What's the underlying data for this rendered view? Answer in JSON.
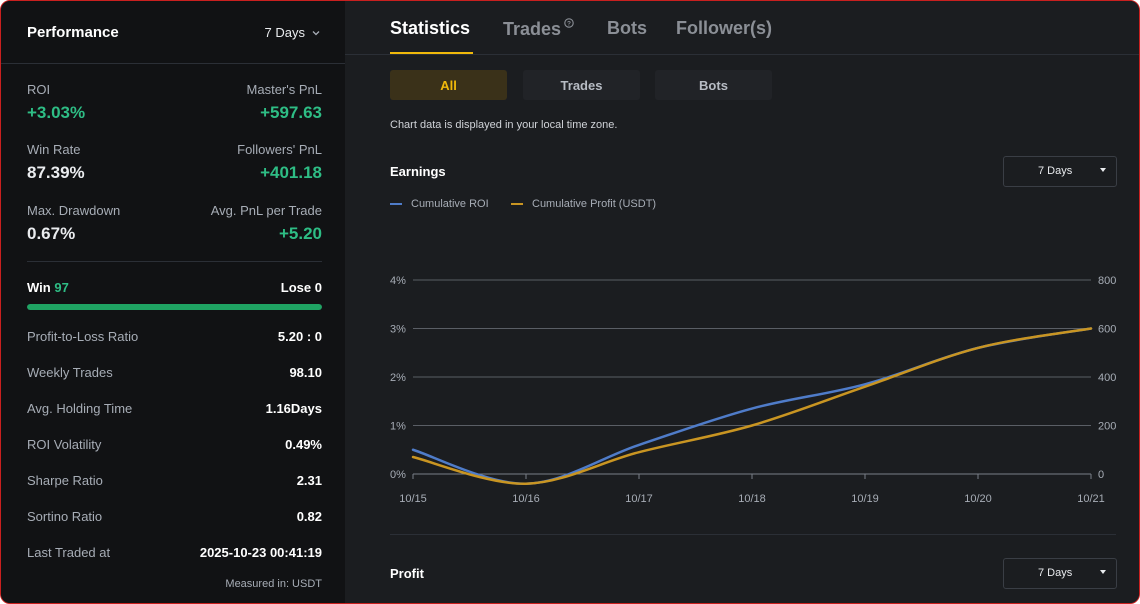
{
  "performance": {
    "title": "Performance",
    "period": "7 Days",
    "metrics": {
      "roi_label": "ROI",
      "roi_value": "+3.03%",
      "master_pnl_label": "Master's PnL",
      "master_pnl_value": "+597.63",
      "win_rate_label": "Win Rate",
      "win_rate_value": "87.39%",
      "followers_pnl_label": "Followers' PnL",
      "followers_pnl_value": "+401.18",
      "max_drawdown_label": "Max. Drawdown",
      "max_drawdown_value": "0.67%",
      "avg_pnl_label": "Avg. PnL per Trade",
      "avg_pnl_value": "+5.20"
    },
    "win_label": "Win",
    "win_count": "97",
    "lose_label": "Lose",
    "lose_count": "0",
    "win_fraction": 1.0,
    "stats": [
      {
        "label": "Profit-to-Loss Ratio",
        "value": "5.20 : 0"
      },
      {
        "label": "Weekly Trades",
        "value": "98.10"
      },
      {
        "label": "Avg. Holding Time",
        "value": "1.16Days"
      },
      {
        "label": "ROI Volatility",
        "value": "0.49%"
      },
      {
        "label": "Sharpe Ratio",
        "value": "2.31"
      },
      {
        "label": "Sortino Ratio",
        "value": "0.82"
      },
      {
        "label": "Last Traded at",
        "value": "2025-10-23 00:41:19"
      }
    ],
    "measured": "Measured in: USDT"
  },
  "tabs": [
    "Statistics",
    "Trades",
    "Bots",
    "Follower(s)"
  ],
  "segments": [
    "All",
    "Trades",
    "Bots"
  ],
  "note": "Chart data is displayed in your local time zone.",
  "earnings": {
    "title": "Earnings",
    "period": "7 Days"
  },
  "profit": {
    "title": "Profit",
    "period": "7 Days"
  },
  "colors": {
    "roi": "#4f7cc9",
    "profit": "#c99522",
    "positive": "#2ebd85",
    "accent": "#f0b90b"
  },
  "chart_data": {
    "type": "line",
    "title": "Earnings",
    "x": [
      "10/15",
      "10/16",
      "10/17",
      "10/18",
      "10/19",
      "10/20",
      "10/21"
    ],
    "series": [
      {
        "name": "Cumulative ROI",
        "axis": "left",
        "values": [
          0.5,
          -0.2,
          0.6,
          1.35,
          1.85,
          2.6,
          3.0
        ]
      },
      {
        "name": "Cumulative Profit (USDT)",
        "axis": "right",
        "values": [
          70,
          -40,
          90,
          200,
          360,
          520,
          600
        ]
      }
    ],
    "y_left": {
      "ticks": [
        "0%",
        "1%",
        "2%",
        "3%",
        "4%"
      ],
      "range": [
        0,
        4
      ]
    },
    "y_right": {
      "ticks": [
        "0",
        "200",
        "400",
        "600",
        "800"
      ],
      "range": [
        0,
        800
      ]
    },
    "grid": true,
    "legend": "top-left"
  }
}
